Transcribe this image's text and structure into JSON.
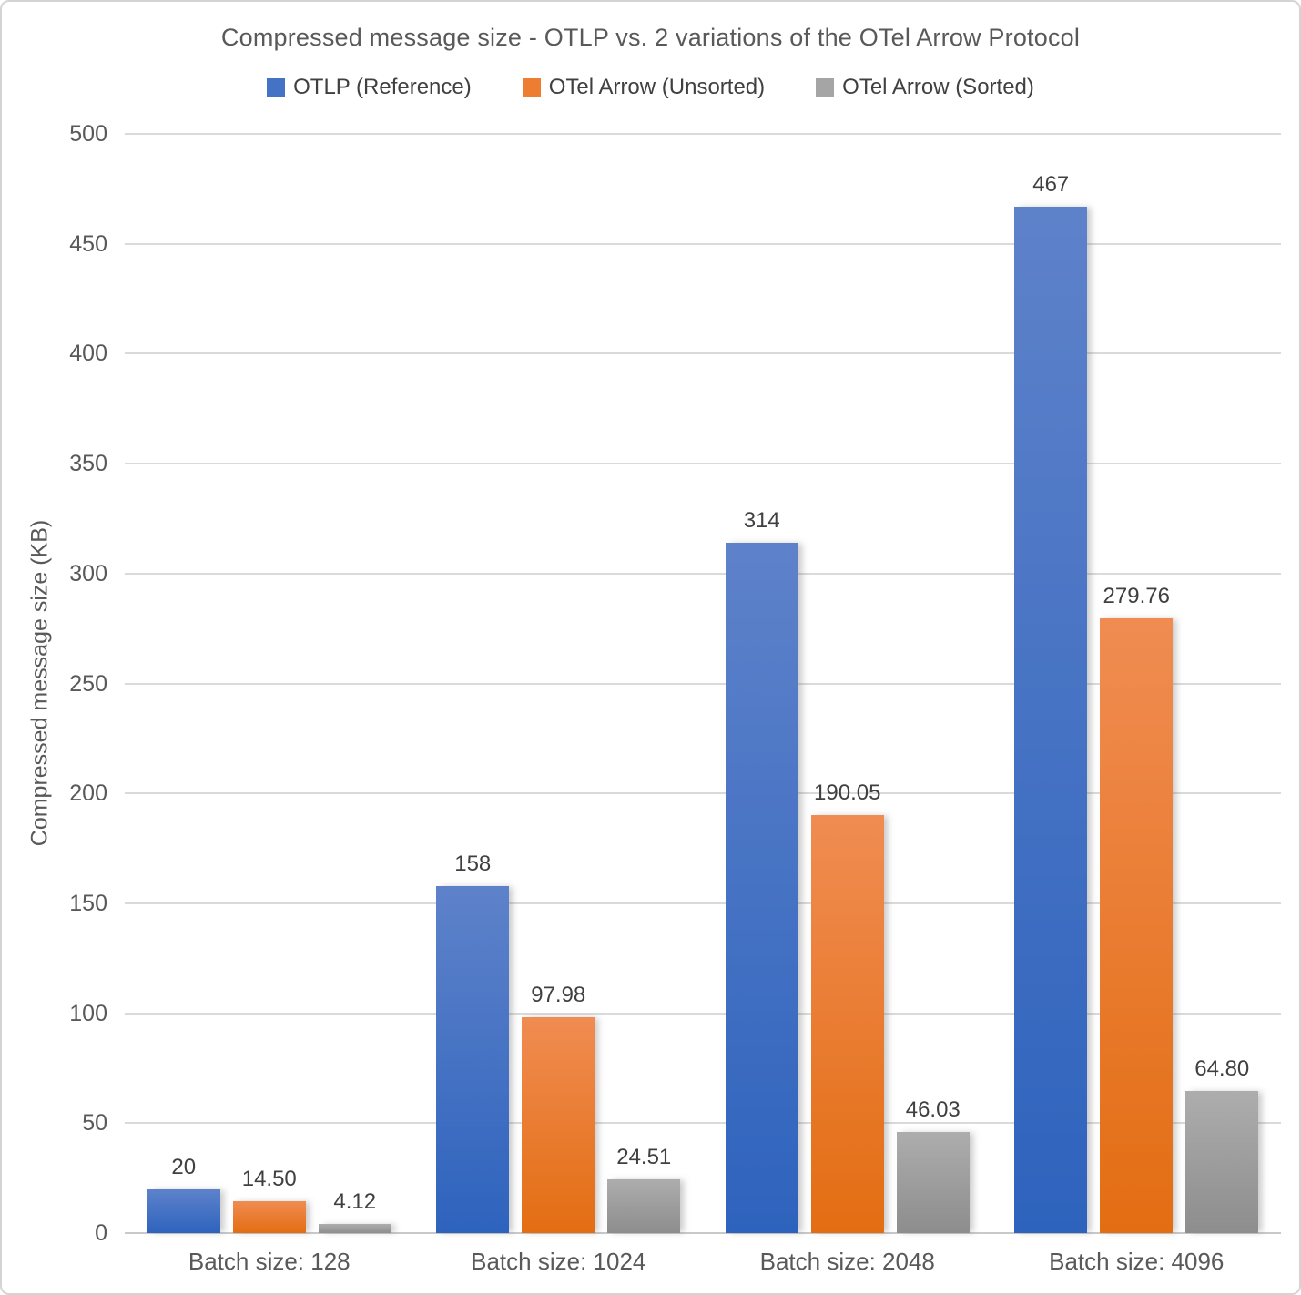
{
  "chart_data": {
    "type": "bar",
    "title": "Compressed message size - OTLP vs. 2 variations of the OTel Arrow Protocol",
    "xlabel": "",
    "ylabel": "Compressed message size (KB)",
    "categories": [
      "Batch size: 128",
      "Batch size: 1024",
      "Batch size: 2048",
      "Batch size: 4096"
    ],
    "series": [
      {
        "name": "OTLP (Reference)",
        "legend_color": "#4472C4",
        "gradient_top": "#5e82ca",
        "gradient_bottom": "#2e63bd",
        "values": [
          20,
          158,
          314,
          467
        ],
        "value_labels": [
          "20",
          "158",
          "314",
          "467"
        ]
      },
      {
        "name": "OTel Arrow (Unsorted)",
        "legend_color": "#ED7D31",
        "gradient_top": "#f08c52",
        "gradient_bottom": "#e36d12",
        "values": [
          14.5,
          97.98,
          190.05,
          279.76
        ],
        "value_labels": [
          "14.50",
          "97.98",
          "190.05",
          "279.76"
        ]
      },
      {
        "name": "OTel Arrow (Sorted)",
        "legend_color": "#A5A5A5",
        "gradient_top": "#adadad",
        "gradient_bottom": "#8d8d8d",
        "values": [
          4.12,
          24.51,
          46.03,
          64.8
        ],
        "value_labels": [
          "4.12",
          "24.51",
          "46.03",
          "64.80"
        ]
      }
    ],
    "ylim": [
      0,
      500
    ],
    "ytick_step": 50,
    "ytick_labels": [
      "0",
      "50",
      "100",
      "150",
      "200",
      "250",
      "300",
      "350",
      "400",
      "450",
      "500"
    ],
    "grid": true,
    "legend_position": "top"
  }
}
